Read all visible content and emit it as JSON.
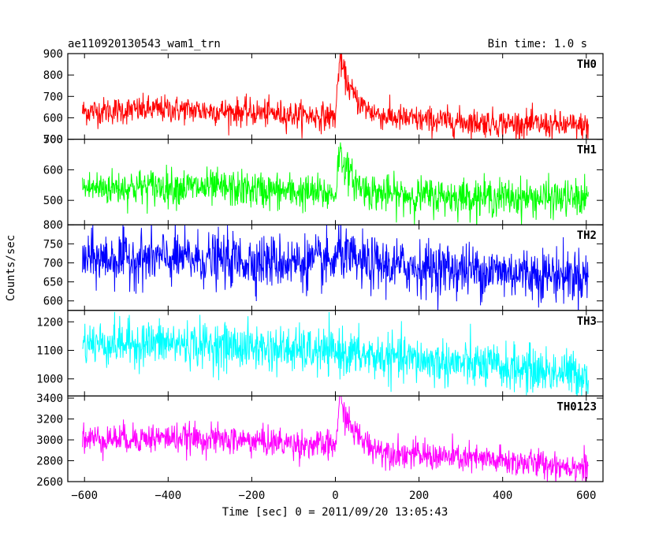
{
  "chart_data": {
    "type": "line",
    "title": "ae110920130543_wam1_trn",
    "subtitle": "Bin time: 1.0 s",
    "xlabel": "Time [sec] 0 = 2011/09/20 13:05:43",
    "ylabel": "Counts/sec",
    "xlim": [
      -640,
      640
    ],
    "x_ticks": [
      -600,
      -400,
      -200,
      0,
      200,
      400,
      600
    ],
    "x_tick_labels": [
      "−600",
      "−400",
      "−200",
      "0",
      "200",
      "400",
      "600"
    ],
    "x_data_range": [
      -605,
      605
    ],
    "panels": [
      {
        "name": "TH0",
        "color": "#ff0000",
        "ylim": [
          500,
          900
        ],
        "y_ticks": [
          500,
          600,
          700,
          800,
          900
        ],
        "y_tick_labels": [
          "500",
          "600",
          "700",
          "800",
          "900"
        ],
        "baseline_points": [
          [
            -600,
            630
          ],
          [
            -400,
            640
          ],
          [
            -200,
            625
          ],
          [
            -10,
            605
          ],
          [
            600,
            560
          ]
        ],
        "burst": {
          "start": 0,
          "peak_time": 10,
          "peak_value": 880,
          "decay_tau": 35
        },
        "noise": 32
      },
      {
        "name": "TH1",
        "color": "#00ff00",
        "ylim": [
          420,
          700
        ],
        "y_ticks": [
          500,
          600,
          700
        ],
        "y_tick_labels": [
          "500",
          "600",
          "700"
        ],
        "baseline_points": [
          [
            -600,
            540
          ],
          [
            -400,
            545
          ],
          [
            -200,
            535
          ],
          [
            -10,
            520
          ],
          [
            600,
            505
          ]
        ],
        "burst": {
          "start": 0,
          "peak_time": 10,
          "peak_value": 665,
          "decay_tau": 30
        },
        "noise": 30
      },
      {
        "name": "TH2",
        "color": "#0000ff",
        "ylim": [
          575,
          800
        ],
        "y_ticks": [
          600,
          650,
          700,
          750,
          800
        ],
        "y_tick_labels": [
          "600",
          "650",
          "700",
          "750",
          "800"
        ],
        "baseline_points": [
          [
            -600,
            710
          ],
          [
            -400,
            712
          ],
          [
            -200,
            705
          ],
          [
            0,
            700
          ],
          [
            600,
            665
          ]
        ],
        "burst": {
          "start": 0,
          "peak_time": 10,
          "peak_value": 740,
          "decay_tau": 20
        },
        "noise": 35
      },
      {
        "name": "TH3",
        "color": "#00ffff",
        "ylim": [
          940,
          1240
        ],
        "y_ticks": [
          1000,
          1100,
          1200
        ],
        "y_tick_labels": [
          "1000",
          "1100",
          "1200"
        ],
        "baseline_points": [
          [
            -600,
            1125
          ],
          [
            -400,
            1125
          ],
          [
            -200,
            1110
          ],
          [
            0,
            1090
          ],
          [
            600,
            1015
          ]
        ],
        "burst": {
          "start": 0,
          "peak_time": 10,
          "peak_value": 1100,
          "decay_tau": 15
        },
        "noise": 40
      },
      {
        "name": "TH0123",
        "color": "#ff00ff",
        "ylim": [
          2600,
          3420
        ],
        "y_ticks": [
          2600,
          2800,
          3000,
          3200,
          3400
        ],
        "y_tick_labels": [
          "2600",
          "2800",
          "3000",
          "3200",
          "3400"
        ],
        "baseline_points": [
          [
            -600,
            3010
          ],
          [
            -400,
            3020
          ],
          [
            -200,
            2990
          ],
          [
            -10,
            2940
          ],
          [
            100,
            2880
          ],
          [
            600,
            2740
          ]
        ],
        "burst": {
          "start": 0,
          "peak_time": 10,
          "peak_value": 3390,
          "decay_tau": 35
        },
        "noise": 70
      }
    ]
  }
}
